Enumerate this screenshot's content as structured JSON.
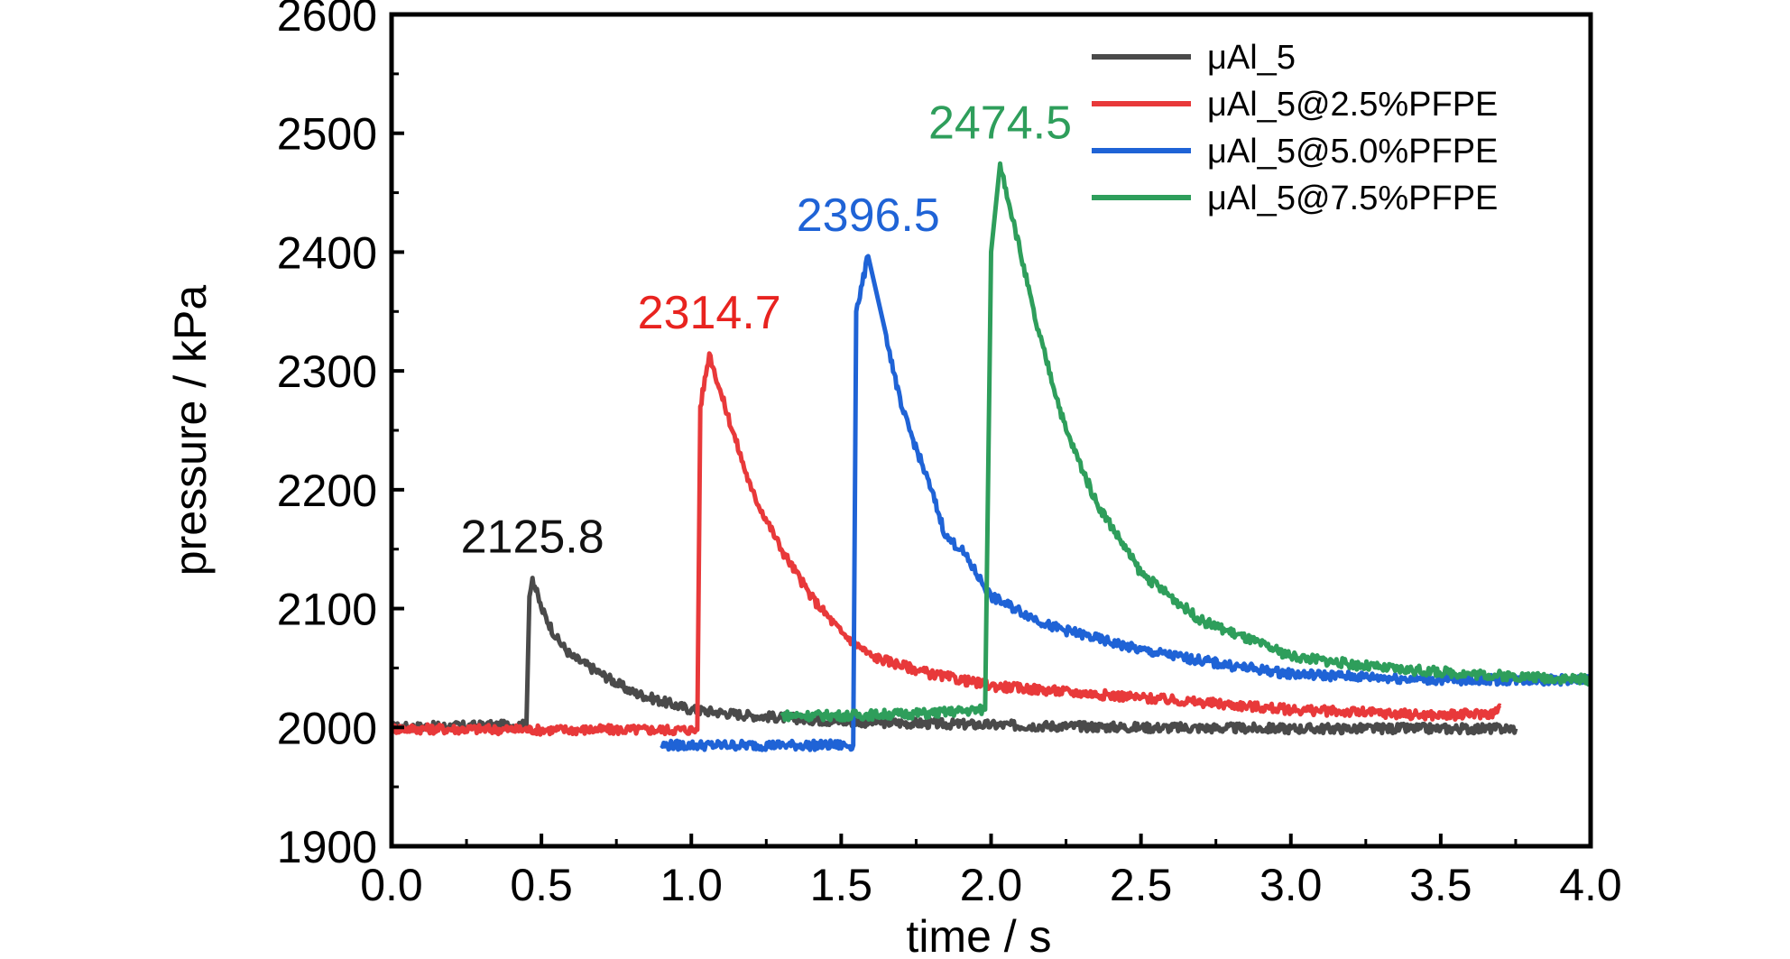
{
  "chart_data": {
    "type": "line",
    "xlabel": "time / s",
    "ylabel": "pressure / kPa",
    "xlim": [
      0.0,
      4.0
    ],
    "ylim": [
      1900,
      2600
    ],
    "x_ticks": [
      "0.0",
      "0.5",
      "1.0",
      "1.5",
      "2.0",
      "2.5",
      "3.0",
      "3.5",
      "4.0"
    ],
    "y_ticks": [
      "1900",
      "2000",
      "2100",
      "2200",
      "2300",
      "2400",
      "2500",
      "2600"
    ],
    "legend_position": "top-right",
    "grid": false,
    "series": [
      {
        "name": "μAl_5",
        "color": "#4a4a4a",
        "x": [
          0.0,
          0.45,
          0.46,
          0.47,
          0.5,
          0.55,
          0.6,
          0.7,
          0.8,
          0.9,
          1.0,
          1.2,
          1.5,
          2.0,
          2.5,
          3.0,
          3.5,
          3.75
        ],
        "y": [
          2000,
          2002,
          2110,
          2125.8,
          2100,
          2075,
          2060,
          2045,
          2030,
          2022,
          2015,
          2010,
          2005,
          2002,
          2000,
          1999,
          1999,
          1999
        ],
        "peak_label": "2125.8",
        "peak": [
          0.47,
          2125.8
        ]
      },
      {
        "name": "μAl_5@2.5%PFPE",
        "color": "#e8393a",
        "x": [
          0.0,
          0.5,
          1.02,
          1.03,
          1.06,
          1.1,
          1.2,
          1.3,
          1.4,
          1.5,
          1.6,
          1.8,
          2.0,
          2.5,
          3.0,
          3.5,
          3.68,
          3.7
        ],
        "y": [
          1999,
          1998,
          1998,
          2270,
          2314.7,
          2280,
          2200,
          2150,
          2110,
          2080,
          2060,
          2045,
          2035,
          2025,
          2015,
          2010,
          2012,
          2018
        ],
        "peak_label": "2314.7",
        "peak": [
          1.06,
          2314.7
        ]
      },
      {
        "name": "μAl_5@5.0%PFPE",
        "color": "#1f63d6",
        "x": [
          0.9,
          1.0,
          1.3,
          1.54,
          1.55,
          1.59,
          1.65,
          1.7,
          1.8,
          1.85,
          1.9,
          2.0,
          2.2,
          2.5,
          2.8,
          3.0,
          3.5,
          4.0
        ],
        "y": [
          1985,
          1985,
          1985,
          1985,
          2350,
          2396.5,
          2330,
          2270,
          2200,
          2160,
          2150,
          2110,
          2085,
          2065,
          2052,
          2045,
          2040,
          2040
        ],
        "peak_label": "2396.5",
        "peak": [
          1.59,
          2396.5
        ]
      },
      {
        "name": "μAl_5@7.5%PFPE",
        "color": "#2e9e5b",
        "x": [
          1.3,
          1.5,
          1.8,
          1.98,
          2.0,
          2.03,
          2.08,
          2.15,
          2.25,
          2.35,
          2.5,
          2.7,
          3.0,
          3.3,
          3.6,
          4.0
        ],
        "y": [
          2010,
          2010,
          2012,
          2015,
          2400,
          2474.5,
          2420,
          2340,
          2250,
          2190,
          2130,
          2090,
          2060,
          2050,
          2045,
          2040
        ],
        "peak_label": "2474.5",
        "peak": [
          2.03,
          2474.5
        ]
      }
    ]
  }
}
